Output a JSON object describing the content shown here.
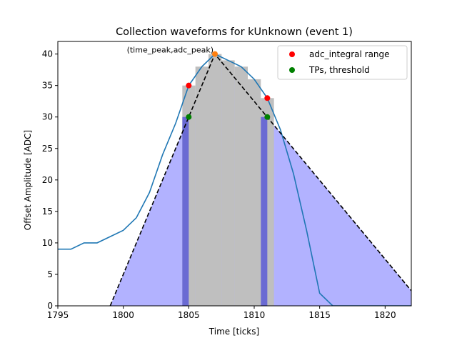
{
  "chart_data": {
    "type": "line",
    "title": "Collection waveforms for kUnknown (event 1)",
    "xlabel": "Time [ticks]",
    "ylabel": "Offset Amplitude [ADC]",
    "xlim": [
      1795,
      1822
    ],
    "ylim": [
      0,
      42
    ],
    "xticks": [
      1795,
      1800,
      1805,
      1810,
      1815,
      1820
    ],
    "yticks": [
      0,
      5,
      10,
      15,
      20,
      25,
      30,
      35,
      40
    ],
    "grid": false,
    "legend_position": "top-right",
    "annotation": "(time_peak,adc_peak)",
    "waveform": {
      "color": "#1f77b4",
      "x": [
        1795,
        1796,
        1797,
        1798,
        1799,
        1800,
        1801,
        1802,
        1803,
        1804,
        1805,
        1806,
        1807,
        1808,
        1809,
        1810,
        1811,
        1812,
        1813,
        1814,
        1815,
        1816,
        1817,
        1818,
        1819,
        1820,
        1821,
        1822
      ],
      "y": [
        9,
        9,
        10,
        10,
        11,
        12,
        14,
        18,
        24,
        29,
        35,
        38,
        40,
        39,
        38,
        36,
        33,
        28,
        21,
        12,
        2,
        0,
        0,
        0,
        0,
        0,
        0,
        0
      ]
    },
    "integral_bars": {
      "color": "#bfbfbf",
      "x": [
        1805,
        1806,
        1807,
        1808,
        1809,
        1810,
        1811
      ],
      "y": [
        35,
        38,
        40,
        39,
        38,
        36,
        33
      ]
    },
    "threshold_bands": {
      "color": "#5b5bd6",
      "x": [
        1805,
        1811
      ],
      "height": 30
    },
    "triangle": {
      "color": "#0000ff",
      "x": [
        1799.0,
        1807,
        1822.0
      ],
      "y": [
        0,
        40,
        2.4
      ]
    },
    "peak_point": {
      "x": 1807,
      "y": 40,
      "color": "#ff7f0e"
    },
    "series": [
      {
        "name": "adc_integral range",
        "color": "#ff0000",
        "x": [
          1805,
          1811
        ],
        "y": [
          35,
          33
        ]
      },
      {
        "name": "TPs, threshold",
        "color": "#008000",
        "x": [
          1805,
          1811
        ],
        "y": [
          30,
          30
        ]
      }
    ]
  }
}
